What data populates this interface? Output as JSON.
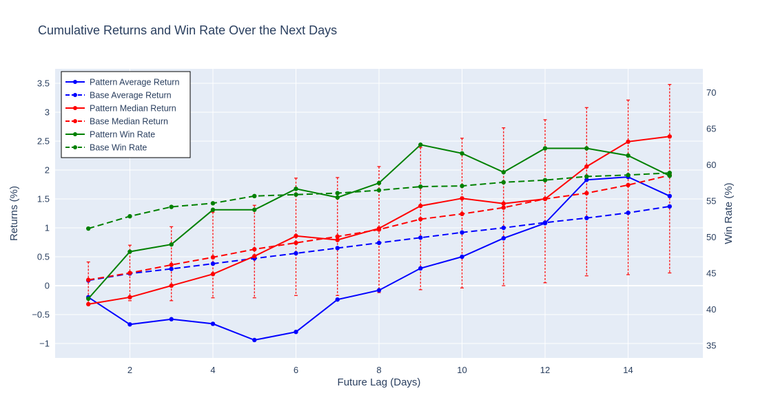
{
  "chart_data": {
    "type": "line",
    "title": "Cumulative Returns and Win Rate Over the Next Days",
    "xlabel": "Future Lag (Days)",
    "ylabel": "Returns (%)",
    "y2label": "Win Rate (%)",
    "x": [
      1,
      2,
      3,
      4,
      5,
      6,
      7,
      8,
      9,
      10,
      11,
      12,
      13,
      14,
      15
    ],
    "xlim": [
      0.2,
      15.8
    ],
    "ylim": [
      -1.25,
      3.75
    ],
    "y2lim": [
      33.3,
      73.3
    ],
    "xticks": [
      2,
      4,
      6,
      8,
      10,
      12,
      14
    ],
    "yticks": [
      -1,
      -0.5,
      0,
      0.5,
      1,
      1.5,
      2,
      2.5,
      3,
      3.5
    ],
    "ytick_labels": [
      "−1",
      "−0.5",
      "0",
      "0.5",
      "1",
      "1.5",
      "2",
      "2.5",
      "3",
      "3.5"
    ],
    "y2ticks": [
      35,
      40,
      45,
      50,
      55,
      60,
      65,
      70
    ],
    "grid": true,
    "legend_position": "top-left",
    "background": "#e5ecf6",
    "series": [
      {
        "name": "Pattern Average Return",
        "axis": "y",
        "color": "#0000ff",
        "dash": "solid",
        "values": [
          -0.2,
          -0.67,
          -0.58,
          -0.66,
          -0.94,
          -0.8,
          -0.24,
          -0.08,
          0.3,
          0.5,
          0.82,
          1.08,
          1.83,
          1.88,
          1.55
        ]
      },
      {
        "name": "Base Average Return",
        "axis": "y",
        "color": "#0000ff",
        "dash": "dash",
        "values": [
          0.09,
          0.21,
          0.29,
          0.38,
          0.47,
          0.56,
          0.65,
          0.74,
          0.83,
          0.92,
          1.0,
          1.09,
          1.17,
          1.26,
          1.37
        ]
      },
      {
        "name": "Pattern Median Return",
        "axis": "y",
        "color": "#ff0000",
        "dash": "solid",
        "values": [
          -0.32,
          -0.2,
          0.0,
          0.2,
          0.51,
          0.86,
          0.79,
          0.99,
          1.38,
          1.51,
          1.42,
          1.5,
          2.06,
          2.49,
          2.58
        ]
      },
      {
        "name": "Base Median Return",
        "axis": "y",
        "color": "#ff0000",
        "dash": "dash",
        "values": [
          0.1,
          0.22,
          0.36,
          0.49,
          0.63,
          0.74,
          0.85,
          0.97,
          1.15,
          1.24,
          1.35,
          1.5,
          1.6,
          1.74,
          1.91
        ],
        "error_bars": {
          "upper": [
            0.41,
            0.7,
            1.02,
            1.27,
            1.39,
            1.86,
            1.87,
            2.06,
            2.39,
            2.55,
            2.73,
            2.87,
            3.08,
            3.21,
            3.48
          ],
          "lower": [
            -0.31,
            -0.26,
            -0.26,
            -0.21,
            -0.21,
            -0.17,
            -0.17,
            -0.12,
            -0.07,
            -0.04,
            0.0,
            0.05,
            0.17,
            0.19,
            0.22
          ]
        }
      },
      {
        "name": "Pattern Win Rate",
        "axis": "y2",
        "color": "#008000",
        "dash": "solid",
        "values": [
          41.5,
          48.0,
          49.0,
          53.8,
          53.8,
          56.7,
          55.5,
          57.5,
          62.8,
          61.6,
          59.0,
          62.3,
          62.3,
          61.3,
          58.5
        ]
      },
      {
        "name": "Base Win Rate",
        "axis": "y2",
        "color": "#008000",
        "dash": "dash",
        "values": [
          51.2,
          52.9,
          54.2,
          54.7,
          55.7,
          55.9,
          56.1,
          56.5,
          57.0,
          57.1,
          57.6,
          57.9,
          58.4,
          58.6,
          58.9
        ]
      }
    ]
  }
}
